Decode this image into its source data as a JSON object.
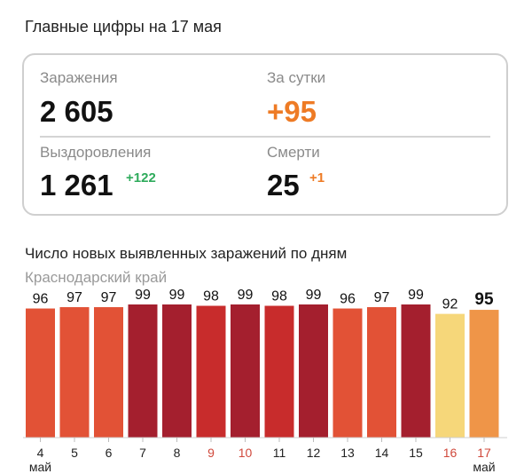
{
  "header": {
    "title": "Главные цифры на 17 мая"
  },
  "stats": {
    "infections": {
      "label": "Заражения",
      "value": "2 605"
    },
    "per_day": {
      "label": "За сутки",
      "value": "+95"
    },
    "recoveries": {
      "label": "Выздоровления",
      "value": "1 261",
      "delta": "+122"
    },
    "deaths": {
      "label": "Смерти",
      "value": "25",
      "delta": "+1"
    }
  },
  "colors": {
    "accent_orange": "#ee7b25",
    "green": "#2fab5c",
    "bar_dark": "#a41f2e",
    "bar_mid": "#c82c2c",
    "bar_red": "#e25236",
    "bar_yellow": "#f6d77a",
    "bar_orange": "#ef9548",
    "weekend_label": "#d0483b"
  },
  "chart_data": {
    "type": "bar",
    "title": "Число новых выявленных заражений по дням",
    "subtitle": "Краснодарский край",
    "categories": [
      "4",
      "5",
      "6",
      "7",
      "8",
      "9",
      "10",
      "11",
      "12",
      "13",
      "14",
      "15",
      "16",
      "17"
    ],
    "category_sublabels": {
      "first": "май",
      "last": "май"
    },
    "values": [
      96,
      97,
      97,
      99,
      99,
      98,
      99,
      98,
      99,
      96,
      97,
      99,
      92,
      95
    ],
    "bar_colors": [
      "#e25236",
      "#e25236",
      "#e25236",
      "#a41f2e",
      "#a41f2e",
      "#c82c2c",
      "#a41f2e",
      "#c82c2c",
      "#a41f2e",
      "#e25236",
      "#e25236",
      "#a41f2e",
      "#f6d77a",
      "#ef9548"
    ],
    "weekend_categories": [
      "9",
      "10",
      "16",
      "17"
    ],
    "highlight_last": true
  }
}
